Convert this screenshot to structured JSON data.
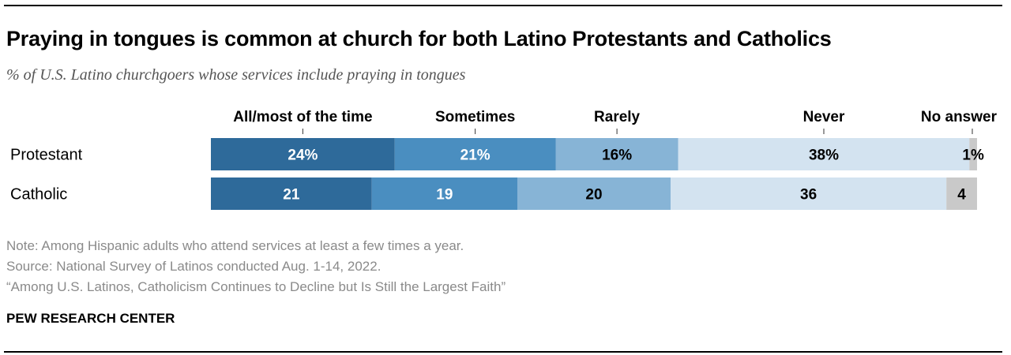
{
  "header": {
    "title": "Praying in tongues is common at church for both Latino Protestants and Catholics",
    "subtitle": "% of U.S. Latino churchgoers whose services include praying in tongues"
  },
  "chart_data": {
    "type": "bar",
    "orientation": "horizontal",
    "stacked": true,
    "categories": [
      "Protestant",
      "Catholic"
    ],
    "series": [
      {
        "name": "All/most of the time",
        "values": [
          24,
          21
        ],
        "labels": [
          "24%",
          "21"
        ],
        "color": "#2e6a9a",
        "label_color": "#ffffff"
      },
      {
        "name": "Sometimes",
        "values": [
          21,
          19
        ],
        "labels": [
          "21%",
          "19"
        ],
        "color": "#4a8ec0",
        "label_color": "#ffffff"
      },
      {
        "name": "Rarely",
        "values": [
          16,
          20
        ],
        "labels": [
          "16%",
          "20"
        ],
        "color": "#87b4d6",
        "label_color": "#000000"
      },
      {
        "name": "Never",
        "values": [
          38,
          36
        ],
        "labels": [
          "38%",
          "36"
        ],
        "color": "#d3e3f0",
        "label_color": "#000000"
      },
      {
        "name": "No answer",
        "values": [
          1,
          4
        ],
        "labels": [
          "1%",
          "4"
        ],
        "color": "#c9c9c9",
        "label_color": "#000000"
      }
    ],
    "legend_position": "top",
    "grid": false
  },
  "notes": {
    "note": "Note: Among Hispanic adults who attend services at least a few times a year.",
    "source": "Source: National Survey of Latinos conducted Aug. 1-14, 2022.",
    "report": "“Among U.S. Latinos, Catholicism Continues to Decline but Is Still the Largest Faith”"
  },
  "brand": "PEW RESEARCH CENTER"
}
